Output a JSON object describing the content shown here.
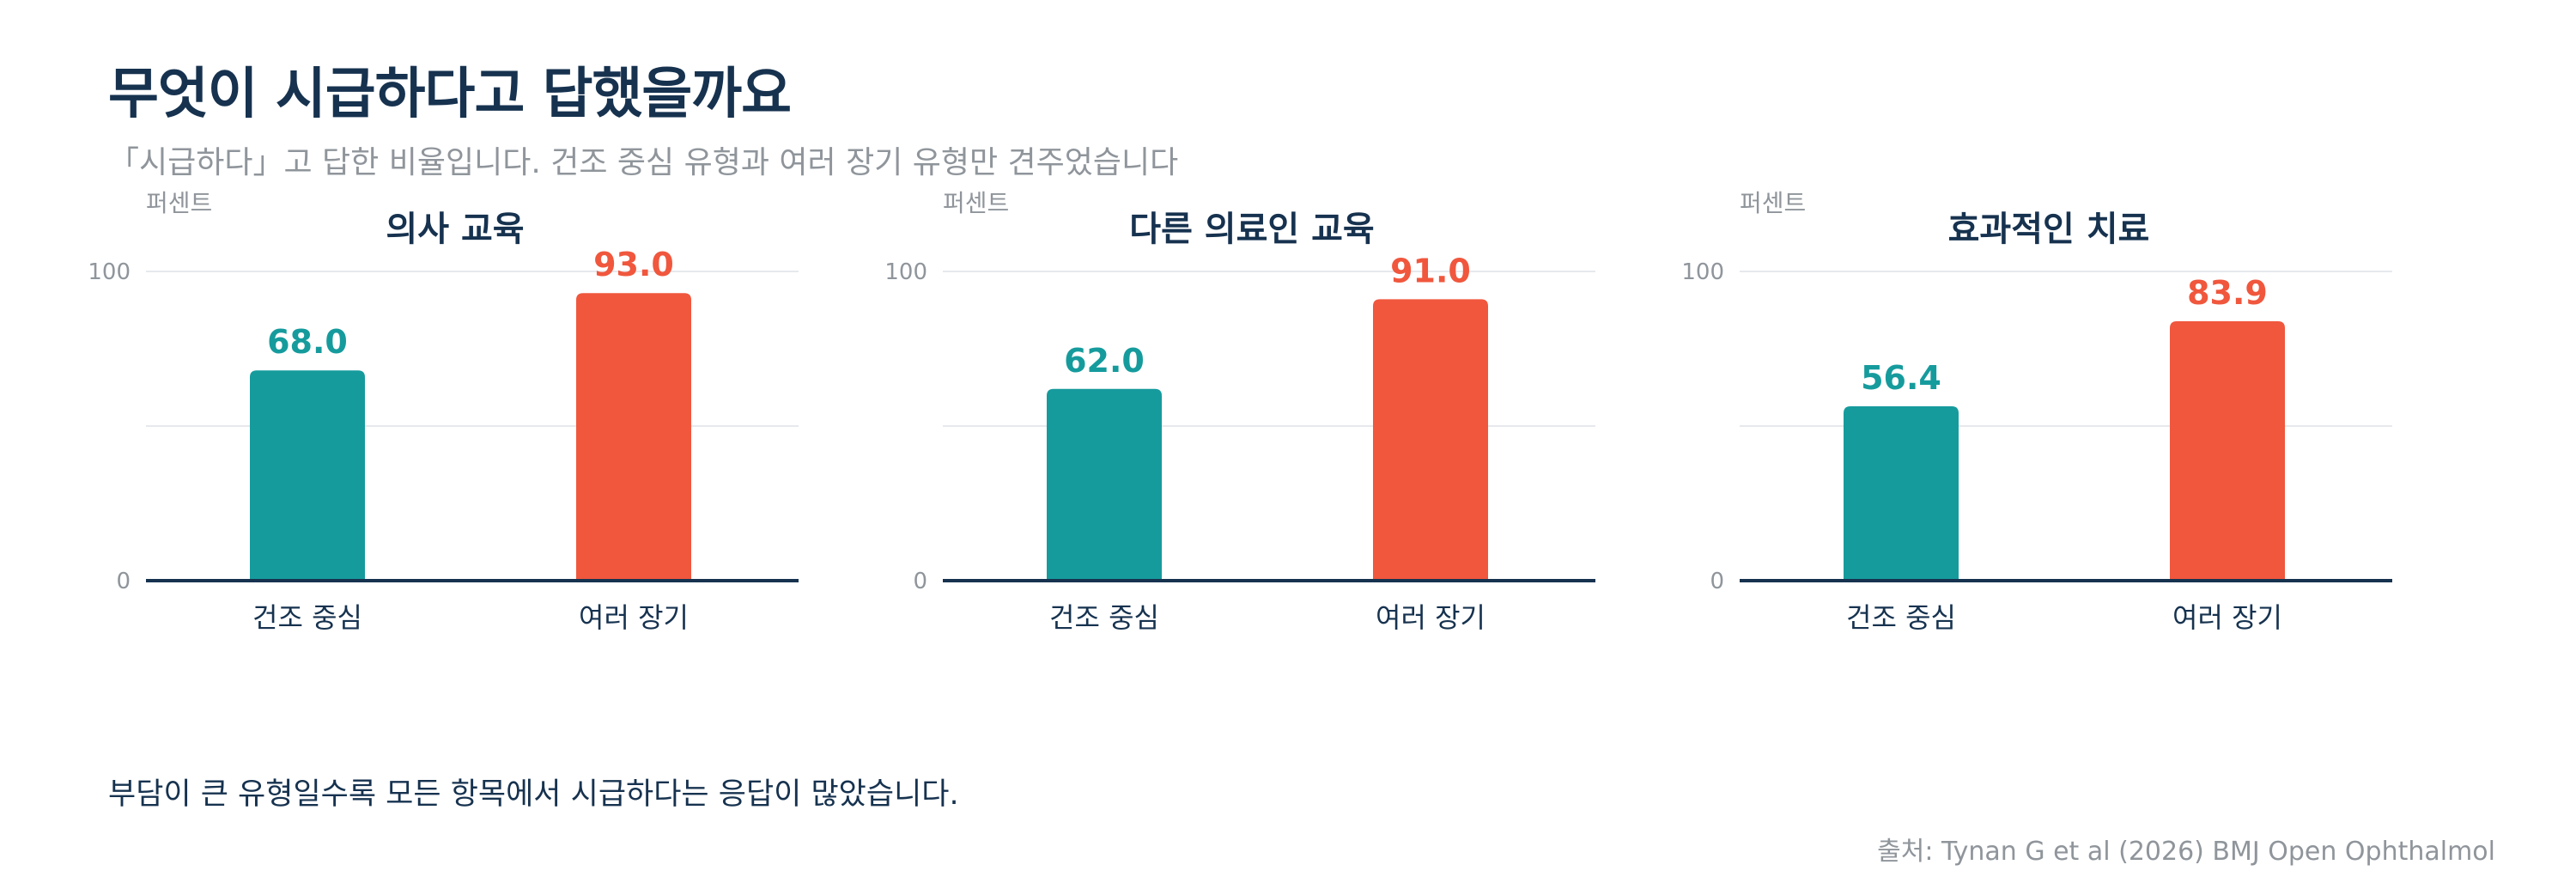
{
  "title": "무엇이 시급하다고 답했을까요",
  "subtitle": "「시급하다」고 답한 비율입니다. 건조 중심 유형과 여러 장기 유형만 견주었습니다",
  "note": "부담이 큰 유형일수록 모든 항목에서 시급하다는 응답이 많았습니다.",
  "source": "출처: Tynan G et al (2026) BMJ Open Ophthalmol",
  "colors": {
    "dry": "#169b9d",
    "multi": "#f0573d",
    "title": "#16324f",
    "muted": "#8f959b",
    "grid": "#e6e9ec",
    "axis": "#16324f"
  },
  "chart_data": [
    {
      "type": "bar",
      "title": "의사 교육",
      "ylabel": "퍼센트",
      "categories": [
        "건조 중심",
        "여러 장기"
      ],
      "values": [
        68.0,
        93.0
      ],
      "value_labels": [
        "68.0",
        "93.0"
      ],
      "yticks": [
        0,
        100
      ],
      "ylim": [
        0,
        100
      ],
      "grid": true
    },
    {
      "type": "bar",
      "title": "다른 의료인 교육",
      "ylabel": "퍼센트",
      "categories": [
        "건조 중심",
        "여러 장기"
      ],
      "values": [
        62.0,
        91.0
      ],
      "value_labels": [
        "62.0",
        "91.0"
      ],
      "yticks": [
        0,
        100
      ],
      "ylim": [
        0,
        100
      ],
      "grid": true
    },
    {
      "type": "bar",
      "title": "효과적인 치료",
      "ylabel": "퍼센트",
      "categories": [
        "건조 중심",
        "여러 장기"
      ],
      "values": [
        56.4,
        83.9
      ],
      "value_labels": [
        "56.4",
        "83.9"
      ],
      "yticks": [
        0,
        100
      ],
      "ylim": [
        0,
        100
      ],
      "grid": true
    }
  ]
}
